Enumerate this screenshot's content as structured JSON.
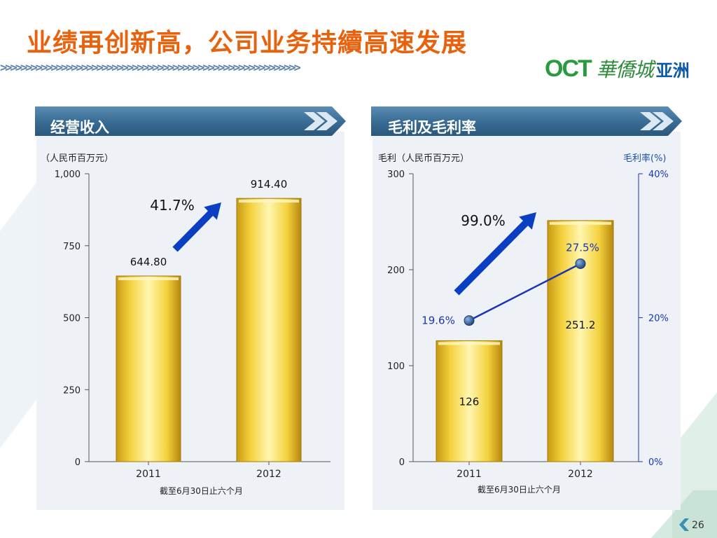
{
  "title": "业绩再创新高，公司业务持續高速发展",
  "decor": {
    "chevrons": ">>>>>>>>>>>>>>>>>>>>>>>>>>>>>>>>>>>>>>>>>>>>>>>>>>>>>>>>>>>"
  },
  "logo": {
    "mark": "OCT",
    "cn": "華僑城",
    "sub": "亚洲"
  },
  "colors": {
    "title": "#e8610c",
    "bar_gold": "#f3c61c",
    "arrow_blue": "#0b3fc2",
    "line_blue": "#1b34b5",
    "ribbon": "#3a6d95"
  },
  "icons": [
    "double-chevron-right-icon",
    "growth-arrow-icon",
    "back-chevron-icon"
  ],
  "page_number": "26",
  "chart_data": [
    {
      "type": "bar",
      "title": "经营收入",
      "ylabel": "（人民币百万元）",
      "categories": [
        "2011",
        "2012"
      ],
      "values": [
        644.8,
        914.4
      ],
      "value_labels": [
        "644.80",
        "914.40"
      ],
      "ylim": [
        0,
        1000
      ],
      "yticks": [
        0,
        250,
        500,
        750,
        1000
      ],
      "ytick_labels": [
        "0",
        "250",
        "500",
        "750",
        "1,000"
      ],
      "growth_label": "41.7%",
      "footnote": "截至6月30日止六个月",
      "grid": false
    },
    {
      "type": "bar",
      "title": "毛利及毛利率",
      "ylabel": "毛利（人民币百万元）",
      "y2label": "毛利率(%)",
      "categories": [
        "2011",
        "2012"
      ],
      "values": [
        126,
        251.2
      ],
      "value_labels": [
        "126",
        "251.2"
      ],
      "ylim": [
        0,
        300
      ],
      "yticks": [
        0,
        100,
        200,
        300
      ],
      "ytick_labels": [
        "0",
        "100",
        "200",
        "300"
      ],
      "y2lim": [
        0,
        40
      ],
      "y2ticks": [
        0,
        20,
        40
      ],
      "y2tick_labels": [
        "0%",
        "20%",
        "40%"
      ],
      "line_series": {
        "type": "line",
        "values": [
          19.6,
          27.5
        ],
        "labels": [
          "19.6%",
          "27.5%"
        ],
        "axis": "secondary"
      },
      "growth_label": "99.0%",
      "footnote": "截至6月30日止六个月",
      "grid": false
    }
  ]
}
